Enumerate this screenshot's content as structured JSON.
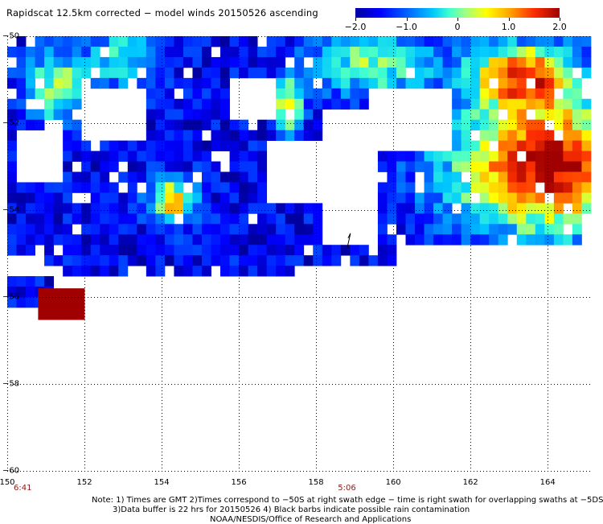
{
  "title": "Rapidscat 12.5km corrected − model winds 20150526 ascending",
  "colorbar": {
    "ticks": [
      {
        "value": -2.0,
        "label": "−2.0"
      },
      {
        "value": -1.0,
        "label": "−1.0"
      },
      {
        "value": 0,
        "label": "0"
      },
      {
        "value": 1.0,
        "label": "1.0"
      },
      {
        "value": 2.0,
        "label": "2.0"
      }
    ],
    "range": [
      -2.0,
      2.0
    ],
    "colors": [
      "#0000a0",
      "#0000ff",
      "#00c8ff",
      "#a0ff80",
      "#ffff00",
      "#ff3000",
      "#a00000"
    ]
  },
  "axes": {
    "x_ticks": [
      {
        "value": 150,
        "label": "150"
      },
      {
        "value": 152,
        "label": "152"
      },
      {
        "value": 154,
        "label": "154"
      },
      {
        "value": 156,
        "label": "156"
      },
      {
        "value": 158,
        "label": "158"
      },
      {
        "value": 160,
        "label": "160"
      },
      {
        "value": 162,
        "label": "162"
      },
      {
        "value": 164,
        "label": "164"
      }
    ],
    "y_ticks": [
      {
        "value": -50,
        "label": "−50"
      },
      {
        "value": -52,
        "label": "−52"
      },
      {
        "value": -54,
        "label": "−54"
      },
      {
        "value": -56,
        "label": "−56"
      },
      {
        "value": -58,
        "label": "−58"
      },
      {
        "value": -60,
        "label": "−60"
      }
    ],
    "x_range": [
      150,
      165.1
    ],
    "y_range": [
      -50,
      -60
    ],
    "grid": true
  },
  "swath_times": [
    {
      "lon": 150.4,
      "label": "6:41"
    },
    {
      "lon": 158.8,
      "label": "5:06"
    }
  ],
  "notes": {
    "line1": "Note: 1) Times are GMT 2)Times correspond to −50S at right swath edge − time is right swath for overlapping swaths at −5DS",
    "line2": "3)Data buffer is 22 hrs for 20150526 4) Black barbs indicate possible rain contamination",
    "line3": "NOAA/NESDIS/Office of Research and Applications"
  },
  "colors": {
    "grid": "#000000",
    "time_label": "#8b1a1a"
  }
}
